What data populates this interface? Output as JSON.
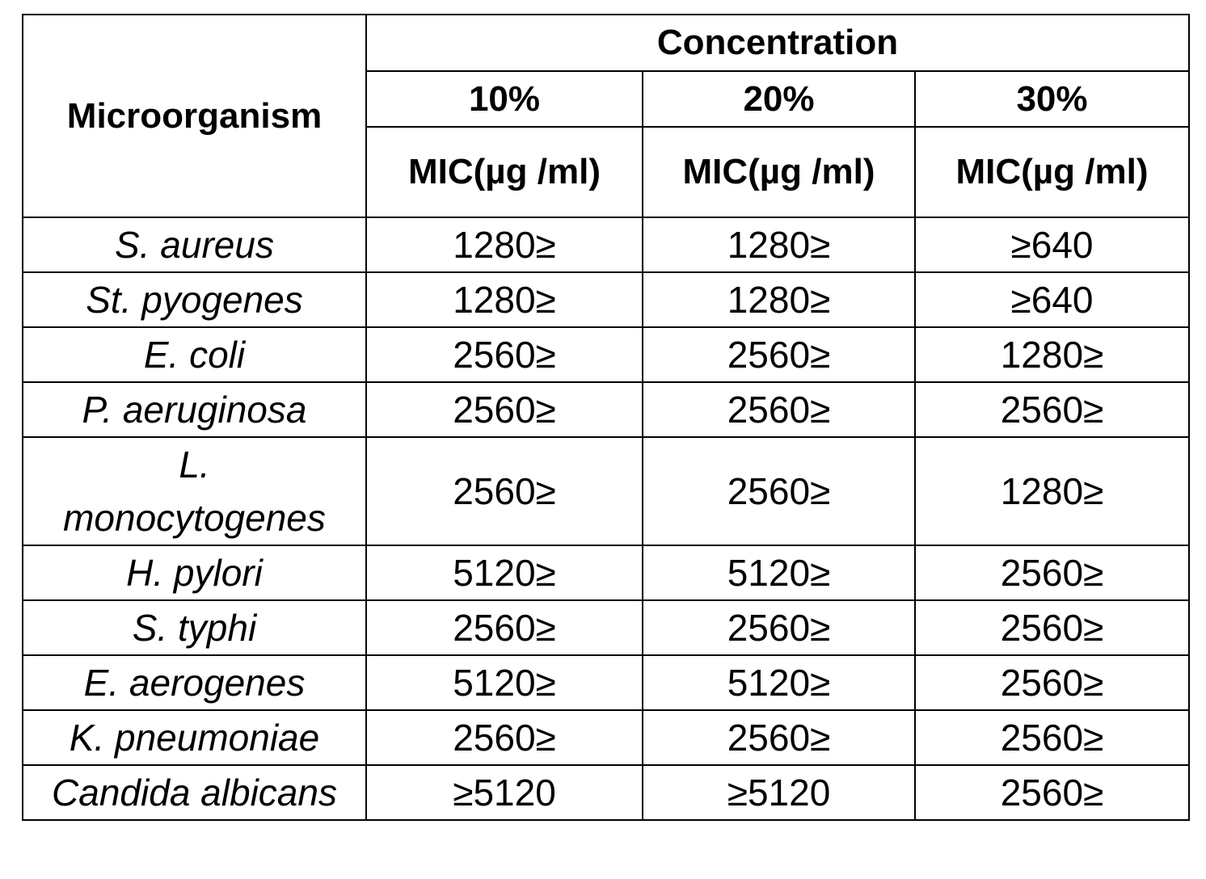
{
  "table": {
    "row_header": "Microorganism",
    "group_header": "Concentration",
    "columns": [
      {
        "concentration": "10%",
        "measure": "MIC(µg /ml)"
      },
      {
        "concentration": "20%",
        "measure": "MIC(µg /ml)"
      },
      {
        "concentration": "30%",
        "measure": "MIC(µg /ml)"
      }
    ],
    "rows": [
      {
        "organism": "S. aureus",
        "values": [
          "1280≥",
          "1280≥",
          "≥640"
        ]
      },
      {
        "organism": "St. pyogenes",
        "values": [
          "1280≥",
          "1280≥",
          "≥640"
        ]
      },
      {
        "organism": "E. coli",
        "values": [
          "2560≥",
          "2560≥",
          "1280≥"
        ]
      },
      {
        "organism": "P. aeruginosa",
        "values": [
          "2560≥",
          "2560≥",
          "2560≥"
        ]
      },
      {
        "organism": "L. monocytogenes",
        "values": [
          "2560≥",
          "2560≥",
          "1280≥"
        ]
      },
      {
        "organism": "H. pylori",
        "values": [
          "5120≥",
          "5120≥",
          "2560≥"
        ]
      },
      {
        "organism": "S. typhi",
        "values": [
          "2560≥",
          "2560≥",
          "2560≥"
        ]
      },
      {
        "organism": "E. aerogenes",
        "values": [
          "5120≥",
          "5120≥",
          "2560≥"
        ]
      },
      {
        "organism": "K. pneumoniae",
        "values": [
          "2560≥",
          "2560≥",
          "2560≥"
        ]
      },
      {
        "organism": "Candida albicans",
        "values": [
          "≥5120",
          "≥5120",
          "2560≥"
        ]
      }
    ]
  }
}
